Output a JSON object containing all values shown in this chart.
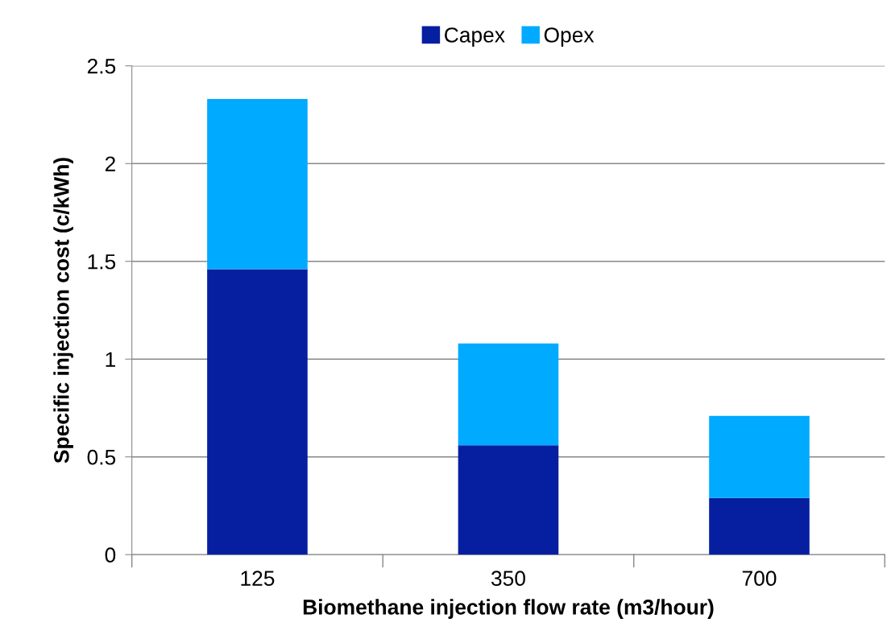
{
  "chart_data": {
    "type": "bar",
    "stacked": true,
    "categories": [
      "125",
      "350",
      "700"
    ],
    "series": [
      {
        "name": "Capex",
        "color": "#061fa0",
        "values": [
          1.46,
          0.56,
          0.29
        ]
      },
      {
        "name": "Opex",
        "color": "#00aaff",
        "values": [
          0.87,
          0.52,
          0.42
        ]
      }
    ],
    "xlabel": "Biomethane injection flow rate (m3/hour)",
    "ylabel": "Specific injection cost (c/kWh)",
    "ylim": [
      0,
      2.5
    ],
    "yticks": [
      0,
      0.5,
      1,
      1.5,
      2,
      2.5
    ],
    "grid": "y",
    "legend": "top"
  }
}
